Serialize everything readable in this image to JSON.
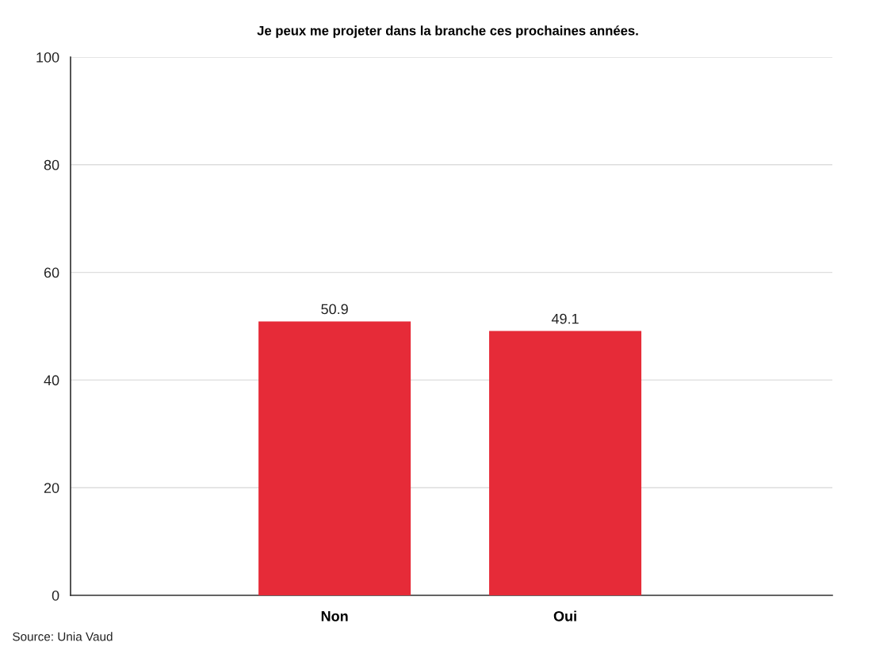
{
  "chart_data": {
    "type": "bar",
    "title": "Je peux me projeter dans la branche ces prochaines années.",
    "categories": [
      "Non",
      "Oui"
    ],
    "values": [
      50.9,
      49.1
    ],
    "color": "#e62b38",
    "ylim": [
      0,
      100
    ],
    "yticks": [
      0,
      20,
      40,
      60,
      80,
      100
    ],
    "grid": "y",
    "data_labels": true,
    "annotations": [
      "Source: Unia Vaud"
    ]
  }
}
